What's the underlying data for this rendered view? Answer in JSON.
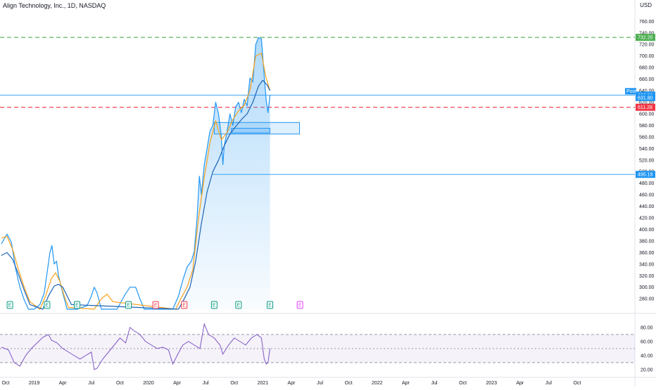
{
  "header": {
    "title": "Align Technology, Inc., 1D, NASDAQ",
    "currency": "USD"
  },
  "colors": {
    "price_line": "#2196f3",
    "ema_fast": "#f7a21b",
    "ema_slow": "#1e63b5",
    "resistance": "#4caf50",
    "support": "#f23645",
    "rsi": "#7e57c2",
    "earnings": "#089981",
    "earnings_neg": "#f23645",
    "earnings_future": "#e040fb"
  },
  "chart_data": {
    "type": "line",
    "title": "Align Technology, Inc., 1D, NASDAQ",
    "ylim": [
      262,
      775
    ],
    "y_ticks": [
      280,
      300,
      320,
      340,
      360,
      380,
      400,
      420,
      440,
      460,
      480,
      500,
      520,
      540,
      560,
      580,
      600,
      620,
      640,
      660,
      680,
      700,
      720,
      740,
      760
    ],
    "x_ticks": [
      "Oct",
      "2019",
      "Apr",
      "Jul",
      "Oct",
      "2020",
      "Apr",
      "Jul",
      "Oct",
      "2021",
      "Apr",
      "Jul",
      "Oct",
      "2022",
      "Apr",
      "Jul",
      "Oct",
      "2023",
      "Apr",
      "Jul",
      "Oct"
    ],
    "series": [
      {
        "values": [
          [
            -0.15,
            375
          ],
          [
            0.05,
            392
          ],
          [
            0.2,
            378
          ],
          [
            0.35,
            332
          ],
          [
            0.5,
            300
          ],
          [
            0.65,
            278
          ],
          [
            0.8,
            262
          ],
          [
            1.0,
            262
          ],
          [
            1.2,
            270
          ],
          [
            1.35,
            290
          ],
          [
            1.45,
            325
          ],
          [
            1.55,
            360
          ],
          [
            1.62,
            372
          ],
          [
            1.7,
            340
          ],
          [
            1.78,
            345
          ],
          [
            1.85,
            320
          ],
          [
            2.0,
            290
          ],
          [
            2.15,
            262
          ],
          [
            2.5,
            262
          ],
          [
            2.85,
            268
          ],
          [
            3.0,
            285
          ],
          [
            3.1,
            300
          ],
          [
            3.2,
            290
          ],
          [
            3.35,
            262
          ],
          [
            3.9,
            262
          ],
          [
            4.15,
            285
          ],
          [
            4.35,
            300
          ],
          [
            4.55,
            300
          ],
          [
            4.7,
            280
          ],
          [
            4.85,
            262
          ],
          [
            5.85,
            262
          ],
          [
            6.05,
            285
          ],
          [
            6.2,
            312
          ],
          [
            6.35,
            335
          ],
          [
            6.5,
            345
          ],
          [
            6.6,
            362
          ],
          [
            6.7,
            420
          ],
          [
            6.78,
            492
          ],
          [
            6.85,
            460
          ],
          [
            6.95,
            512
          ],
          [
            7.05,
            540
          ],
          [
            7.15,
            570
          ],
          [
            7.25,
            580
          ],
          [
            7.35,
            620
          ],
          [
            7.45,
            600
          ],
          [
            7.55,
            560
          ],
          [
            7.6,
            512
          ],
          [
            7.65,
            545
          ],
          [
            7.75,
            570
          ],
          [
            7.85,
            600
          ],
          [
            7.95,
            580
          ],
          [
            8.05,
            612
          ],
          [
            8.15,
            620
          ],
          [
            8.25,
            602
          ],
          [
            8.35,
            625
          ],
          [
            8.45,
            614
          ],
          [
            8.55,
            662
          ],
          [
            8.65,
            655
          ],
          [
            8.75,
            720
          ],
          [
            8.85,
            732
          ],
          [
            8.95,
            730
          ],
          [
            9.05,
            665
          ],
          [
            9.12,
            622
          ],
          [
            9.18,
            602
          ],
          [
            9.25,
            632
          ]
        ]
      },
      {
        "values": [
          [
            -0.15,
            385
          ],
          [
            0.05,
            388
          ],
          [
            0.25,
            365
          ],
          [
            0.45,
            330
          ],
          [
            0.65,
            300
          ],
          [
            0.85,
            275
          ],
          [
            1.2,
            262
          ],
          [
            1.4,
            285
          ],
          [
            1.6,
            315
          ],
          [
            1.75,
            325
          ],
          [
            1.9,
            310
          ],
          [
            2.05,
            285
          ],
          [
            2.2,
            265
          ],
          [
            3.1,
            262
          ],
          [
            3.35,
            280
          ],
          [
            3.55,
            288
          ],
          [
            3.75,
            275
          ],
          [
            5.95,
            262
          ],
          [
            6.15,
            282
          ],
          [
            6.35,
            300
          ],
          [
            6.55,
            330
          ],
          [
            6.75,
            420
          ],
          [
            6.95,
            490
          ],
          [
            7.15,
            550
          ],
          [
            7.35,
            588
          ],
          [
            7.55,
            555
          ],
          [
            7.75,
            568
          ],
          [
            7.95,
            590
          ],
          [
            8.15,
            605
          ],
          [
            8.35,
            615
          ],
          [
            8.55,
            640
          ],
          [
            8.75,
            700
          ],
          [
            8.95,
            705
          ],
          [
            9.1,
            665
          ],
          [
            9.25,
            640
          ]
        ]
      },
      {
        "values": [
          [
            -0.15,
            355
          ],
          [
            0.05,
            360
          ],
          [
            0.25,
            348
          ],
          [
            0.45,
            322
          ],
          [
            0.65,
            295
          ],
          [
            0.85,
            270
          ],
          [
            1.3,
            262
          ],
          [
            1.5,
            285
          ],
          [
            1.7,
            302
          ],
          [
            1.85,
            305
          ],
          [
            2.0,
            300
          ],
          [
            2.15,
            285
          ],
          [
            2.3,
            270
          ],
          [
            6.05,
            262
          ],
          [
            6.25,
            280
          ],
          [
            6.45,
            300
          ],
          [
            6.65,
            345
          ],
          [
            6.85,
            410
          ],
          [
            7.05,
            465
          ],
          [
            7.25,
            500
          ],
          [
            7.45,
            520
          ],
          [
            7.65,
            545
          ],
          [
            7.85,
            565
          ],
          [
            8.05,
            578
          ],
          [
            8.25,
            590
          ],
          [
            8.45,
            600
          ],
          [
            8.65,
            620
          ],
          [
            8.85,
            648
          ],
          [
            9.0,
            658
          ],
          [
            9.15,
            650
          ],
          [
            9.25,
            640
          ]
        ]
      }
    ],
    "levels": [
      {
        "value": 732.2,
        "label": "732.20",
        "style": "dashed",
        "color": "#4caf50"
      },
      {
        "value": 611.28,
        "label": "611.28",
        "style": "dashed",
        "color": "#f23645"
      },
      {
        "value": 632.39,
        "label": "632.39",
        "style": "solid",
        "color": "#2196f3"
      },
      {
        "value": 495.19,
        "label": "495.19",
        "style": "solid",
        "color": "#2196f3"
      }
    ],
    "price_tags": [
      {
        "value": 631.8,
        "label": "631.80",
        "color": "#2196f3"
      }
    ],
    "post_label": "Post",
    "zones": [
      {
        "x0": 7.3,
        "x1": 9.25,
        "y0": 565,
        "y1": 585
      },
      {
        "x0": 7.9,
        "x1": 9.25,
        "y0": 567,
        "y1": 575
      }
    ],
    "earnings_markers": [
      {
        "x": 0.15,
        "label": "E",
        "kind": "pos"
      },
      {
        "x": 1.45,
        "label": "E",
        "kind": "pos"
      },
      {
        "x": 2.5,
        "label": "E",
        "kind": "pos"
      },
      {
        "x": 4.3,
        "label": "E",
        "kind": "pos"
      },
      {
        "x": 5.25,
        "label": "E",
        "kind": "neg"
      },
      {
        "x": 6.25,
        "label": "E",
        "kind": "neg"
      },
      {
        "x": 7.3,
        "label": "E",
        "kind": "pos"
      },
      {
        "x": 8.15,
        "label": "E",
        "kind": "pos"
      },
      {
        "x": 9.25,
        "label": "E",
        "kind": "pos"
      },
      {
        "x": 10.3,
        "label": "E",
        "kind": "future"
      }
    ],
    "rsi": {
      "ylim": [
        14,
        90
      ],
      "y_ticks": [
        20,
        40,
        60,
        80
      ],
      "upper": 70,
      "lower": 30,
      "mid": 50,
      "values": [
        [
          -0.15,
          52
        ],
        [
          0.1,
          48
        ],
        [
          0.3,
          30
        ],
        [
          0.5,
          25
        ],
        [
          0.7,
          40
        ],
        [
          0.9,
          50
        ],
        [
          1.1,
          58
        ],
        [
          1.3,
          66
        ],
        [
          1.5,
          70
        ],
        [
          1.6,
          62
        ],
        [
          1.8,
          58
        ],
        [
          2.0,
          50
        ],
        [
          2.2,
          45
        ],
        [
          2.4,
          40
        ],
        [
          2.6,
          35
        ],
        [
          2.8,
          40
        ],
        [
          3.0,
          45
        ],
        [
          3.1,
          20
        ],
        [
          3.2,
          22
        ],
        [
          3.4,
          35
        ],
        [
          3.6,
          45
        ],
        [
          3.8,
          55
        ],
        [
          4.0,
          65
        ],
        [
          4.2,
          58
        ],
        [
          4.35,
          80
        ],
        [
          4.5,
          75
        ],
        [
          4.7,
          70
        ],
        [
          4.9,
          60
        ],
        [
          5.1,
          55
        ],
        [
          5.3,
          50
        ],
        [
          5.5,
          52
        ],
        [
          5.7,
          48
        ],
        [
          5.85,
          28
        ],
        [
          6.0,
          40
        ],
        [
          6.2,
          55
        ],
        [
          6.4,
          60
        ],
        [
          6.6,
          55
        ],
        [
          6.8,
          50
        ],
        [
          6.95,
          85
        ],
        [
          7.1,
          70
        ],
        [
          7.3,
          65
        ],
        [
          7.5,
          55
        ],
        [
          7.6,
          42
        ],
        [
          7.8,
          55
        ],
        [
          8.0,
          65
        ],
        [
          8.2,
          60
        ],
        [
          8.4,
          55
        ],
        [
          8.6,
          65
        ],
        [
          8.8,
          70
        ],
        [
          8.95,
          65
        ],
        [
          9.05,
          35
        ],
        [
          9.12,
          28
        ],
        [
          9.18,
          30
        ],
        [
          9.25,
          50
        ]
      ]
    }
  }
}
